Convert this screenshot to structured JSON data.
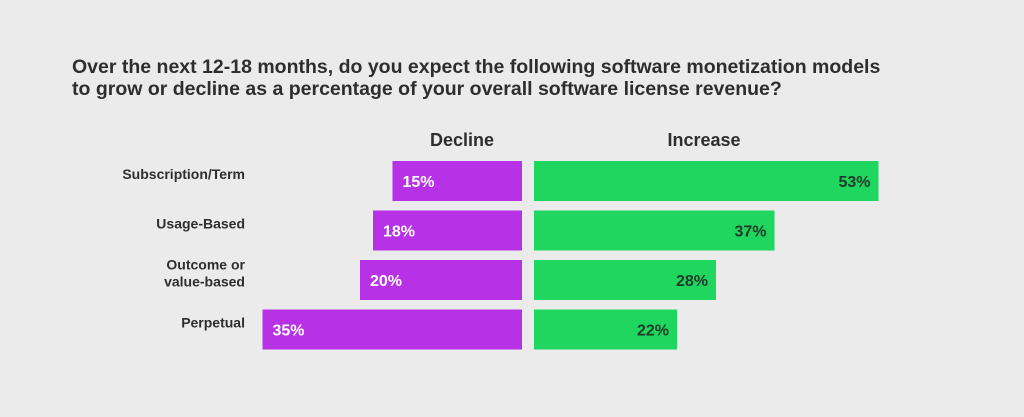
{
  "chart_data": {
    "type": "bar",
    "title": [
      "Over the next 12-18 months, do you expect the following software monetization models",
      "to grow or decline as a percentage of your overall software license revenue?"
    ],
    "categories": [
      [
        "Subscription/Term"
      ],
      [
        "Usage-Based"
      ],
      [
        "Outcome or",
        "value-based"
      ],
      [
        "Perpetual"
      ]
    ],
    "series": [
      {
        "name": "Decline",
        "values": [
          15,
          18,
          20,
          35
        ],
        "labels": [
          "15%",
          "18%",
          "20%",
          "35%"
        ],
        "color": "#b732e6",
        "label_color": "#ffffff"
      },
      {
        "name": "Increase",
        "values": [
          53,
          37,
          28,
          22
        ],
        "labels": [
          "53%",
          "37%",
          "28%",
          "22%"
        ],
        "color": "#1fd65f",
        "label_color": "#1f3a2a"
      }
    ],
    "legend": "column headers",
    "grid": false
  }
}
